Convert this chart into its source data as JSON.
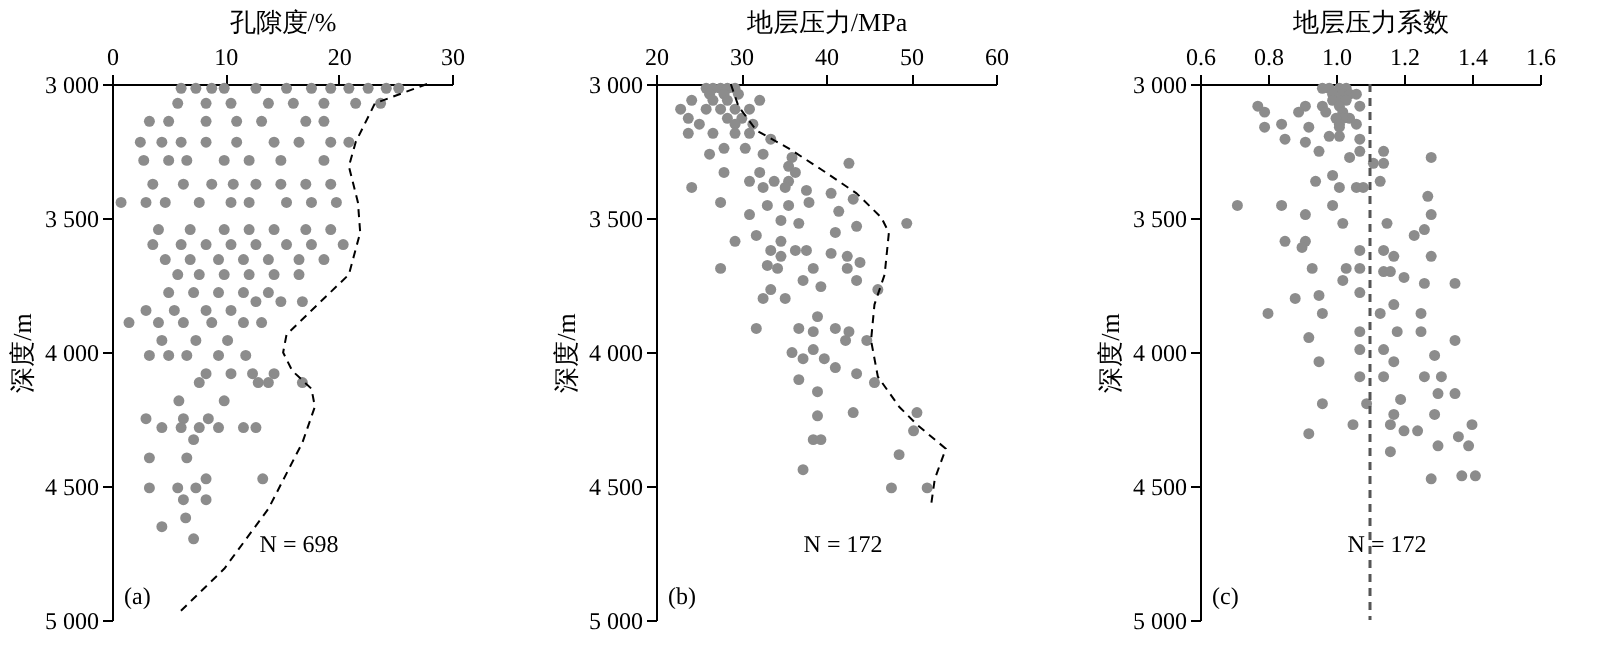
{
  "chart_data": [
    {
      "type": "scatter",
      "xlabel": "孔隙度/%",
      "ylabel": "深度/m",
      "xlim": [
        0,
        30
      ],
      "xticks": [
        0,
        10,
        20,
        30
      ],
      "ylim": [
        5000,
        3000
      ],
      "yticks": [
        {
          "value": 3000,
          "label": "3 000"
        },
        {
          "value": 3500,
          "label": "3 500"
        },
        {
          "value": 4000,
          "label": "4 000"
        },
        {
          "value": 4500,
          "label": "4 500"
        },
        {
          "value": 5000,
          "label": "5 000"
        }
      ],
      "grid": false,
      "annotations": [
        "N = 698",
        "(a)"
      ],
      "series": [
        {
          "marker": "circle",
          "color": "#8c8c8c",
          "x": [
            6.1,
            7.4,
            8.8,
            9.9,
            12.7,
            15.4,
            17.6,
            19.3,
            20.9,
            22.6,
            24.2,
            25.3,
            5.8,
            8.3,
            10.5,
            13.8,
            16.0,
            18.7,
            21.5,
            23.7,
            3.3,
            5.0,
            8.3,
            11.0,
            13.2,
            17.1,
            18.7,
            2.5,
            4.4,
            6.1,
            8.3,
            11.0,
            14.3,
            16.5,
            19.3,
            20.9,
            2.8,
            5.0,
            6.6,
            9.9,
            12.1,
            14.9,
            18.7,
            3.6,
            6.3,
            8.8,
            10.7,
            12.7,
            14.9,
            17.1,
            19.3,
            0.8,
            3.0,
            4.7,
            7.7,
            10.5,
            12.1,
            15.4,
            17.6,
            19.8,
            4.1,
            6.9,
            9.9,
            12.1,
            14.3,
            17.1,
            19.3,
            3.6,
            6.1,
            8.3,
            10.5,
            12.7,
            15.4,
            17.6,
            20.4,
            4.7,
            6.9,
            9.4,
            11.6,
            13.8,
            16.5,
            18.7,
            5.8,
            7.7,
            9.9,
            12.1,
            14.3,
            16.5,
            5.0,
            7.2,
            9.4,
            11.6,
            13.8,
            12.7,
            14.9,
            16.8,
            3.0,
            5.5,
            8.3,
            10.5,
            1.5,
            4.1,
            6.3,
            8.8,
            11.6,
            13.2,
            4.4,
            7.4,
            10.2,
            3.3,
            5.0,
            6.6,
            9.4,
            11.8,
            8.3,
            10.5,
            12.4,
            14.3,
            7.7,
            12.9,
            13.8,
            16.8,
            5.9,
            9.9,
            3.0,
            6.3,
            8.5,
            4.4,
            6.1,
            7.7,
            9.4,
            11.6,
            12.7,
            7.2,
            3.3,
            6.6,
            8.3,
            13.3,
            3.3,
            5.8,
            7.4,
            6.3,
            8.3,
            6.5,
            4.4,
            7.2
          ],
          "values": [
            3016,
            3016,
            3016,
            3016,
            3016,
            3016,
            3016,
            3016,
            3016,
            3016,
            3016,
            3016,
            3072,
            3072,
            3072,
            3072,
            3072,
            3072,
            3072,
            3072,
            3139,
            3139,
            3139,
            3139,
            3139,
            3139,
            3139,
            3217,
            3217,
            3217,
            3217,
            3217,
            3217,
            3217,
            3217,
            3217,
            3285,
            3285,
            3285,
            3285,
            3285,
            3285,
            3285,
            3374,
            3374,
            3374,
            3374,
            3374,
            3374,
            3374,
            3374,
            3442,
            3442,
            3442,
            3442,
            3442,
            3442,
            3442,
            3442,
            3442,
            3543,
            3543,
            3543,
            3543,
            3543,
            3543,
            3543,
            3599,
            3599,
            3599,
            3599,
            3599,
            3599,
            3599,
            3599,
            3655,
            3655,
            3655,
            3655,
            3655,
            3655,
            3655,
            3711,
            3711,
            3711,
            3711,
            3711,
            3711,
            3778,
            3778,
            3778,
            3778,
            3778,
            3812,
            3812,
            3812,
            3845,
            3845,
            3845,
            3845,
            3890,
            3890,
            3890,
            3890,
            3890,
            3890,
            3957,
            3957,
            3957,
            4013,
            4013,
            4013,
            4013,
            4013,
            4081,
            4081,
            4081,
            4081,
            4114,
            4114,
            4114,
            4114,
            4182,
            4182,
            4249,
            4249,
            4249,
            4282,
            4282,
            4282,
            4282,
            4282,
            4282,
            4327,
            4395,
            4395,
            4473,
            4473,
            4507,
            4507,
            4507,
            4551,
            4551,
            4619,
            4652,
            4697
          ]
        },
        {
          "type": "line",
          "color": "#000000",
          "line_style": "dashed",
          "x": [
            27.8,
            23.2,
            21.5,
            20.9,
            21.7,
            21.9,
            20.9,
            17.6,
            15.4,
            15.1,
            15.9,
            17.6,
            17.9,
            16.8,
            13.8,
            9.9,
            5.8
          ],
          "values": [
            3000,
            3072,
            3217,
            3307,
            3442,
            3554,
            3711,
            3845,
            3935,
            4002,
            4070,
            4137,
            4204,
            4338,
            4585,
            4809,
            4977
          ]
        }
      ]
    },
    {
      "type": "scatter",
      "xlabel": "地层压力/MPa",
      "ylabel": "深度/m",
      "xlim": [
        20,
        60
      ],
      "xticks": [
        20,
        30,
        40,
        50,
        60
      ],
      "ylim": [
        5000,
        3000
      ],
      "yticks": [
        {
          "value": 3000,
          "label": "3 000"
        },
        {
          "value": 3500,
          "label": "3 500"
        },
        {
          "value": 4000,
          "label": "4 000"
        },
        {
          "value": 4500,
          "label": "4 500"
        },
        {
          "value": 5000,
          "label": "5 000"
        }
      ],
      "grid": false,
      "annotations": [
        "N = 172",
        "(b)"
      ],
      "series": [
        {
          "marker": "circle",
          "color": "#8c8c8c",
          "x": [
            25.9,
            26.7,
            27.6,
            28.4,
            29.3,
            26.3,
            28.0,
            29.7,
            24.2,
            26.7,
            28.4,
            32.2,
            22.9,
            25.9,
            27.6,
            29.3,
            31.0,
            23.8,
            28.4,
            30.1,
            25.1,
            29.3,
            31.4,
            23.8,
            26.7,
            29.3,
            31.0,
            33.5,
            28.0,
            30.5,
            26.3,
            32.6,
            36.0,
            42.7,
            35.6,
            28.0,
            32.2,
            36.4,
            31.0,
            33.9,
            35.6,
            24.2,
            32.6,
            35.2,
            37.7,
            40.6,
            43.2,
            27.6,
            38.0,
            33.1,
            35.6,
            41.5,
            31.0,
            34.7,
            36.8,
            49.5,
            43.6,
            41.1,
            31.8,
            29.3,
            34.7,
            36.4,
            37.7,
            33.5,
            40.6,
            34.7,
            42.5,
            44.0,
            33.1,
            27.6,
            34.3,
            38.5,
            42.5,
            37.3,
            43.6,
            39.4,
            33.5,
            46.1,
            32.6,
            35.2,
            39.0,
            31.8,
            36.8,
            41.1,
            38.5,
            42.7,
            42.3,
            44.8,
            38.5,
            36.0,
            37.3,
            39.8,
            41.1,
            43.6,
            36.8,
            45.7,
            39.0,
            43.2,
            50.7,
            39.0,
            50.3,
            38.5,
            39.4,
            48.6,
            37.3,
            47.7,
            51.9
          ],
          "values": [
            3016,
            3016,
            3016,
            3016,
            3016,
            3038,
            3038,
            3038,
            3061,
            3061,
            3061,
            3061,
            3094,
            3094,
            3094,
            3094,
            3094,
            3128,
            3128,
            3128,
            3150,
            3150,
            3150,
            3184,
            3184,
            3184,
            3184,
            3206,
            3240,
            3240,
            3262,
            3262,
            3274,
            3296,
            3307,
            3330,
            3330,
            3330,
            3363,
            3363,
            3363,
            3386,
            3386,
            3386,
            3397,
            3408,
            3430,
            3442,
            3442,
            3453,
            3453,
            3475,
            3487,
            3509,
            3520,
            3520,
            3531,
            3554,
            3565,
            3587,
            3587,
            3621,
            3621,
            3621,
            3632,
            3643,
            3643,
            3666,
            3677,
            3688,
            3688,
            3688,
            3688,
            3733,
            3733,
            3756,
            3767,
            3767,
            3800,
            3800,
            3868,
            3912,
            3912,
            3912,
            3924,
            3924,
            3957,
            3957,
            3991,
            4002,
            4025,
            4025,
            4058,
            4081,
            4103,
            4114,
            4148,
            4226,
            4226,
            4238,
            4294,
            4327,
            4327,
            4383,
            4439,
            4507,
            4507
          ]
        },
        {
          "type": "line",
          "color": "#000000",
          "line_style": "dashed",
          "x": [
            28.8,
            29.7,
            31.8,
            35.6,
            39.4,
            43.6,
            46.5,
            47.4,
            46.9,
            45.7,
            45.3,
            46.1,
            48.6,
            50.7,
            54.1,
            52.8,
            52.4
          ],
          "values": [
            3000,
            3083,
            3173,
            3240,
            3318,
            3408,
            3498,
            3554,
            3711,
            3823,
            3957,
            4092,
            4204,
            4271,
            4361,
            4473,
            4563
          ]
        }
      ]
    },
    {
      "type": "scatter",
      "xlabel": "地层压力系数",
      "ylabel": "深度/m",
      "xlim": [
        0.6,
        1.6
      ],
      "xticks": [
        0.6,
        0.8,
        {
          "value": 1,
          "label": "1.0"
        },
        1.2,
        1.4,
        1.6
      ],
      "ylim": [
        5000,
        3000
      ],
      "yticks": [
        {
          "value": 3000,
          "label": "3 000"
        },
        {
          "value": 3500,
          "label": "3 500"
        },
        {
          "value": 4000,
          "label": "4 000"
        },
        {
          "value": 4500,
          "label": "4 500"
        },
        {
          "value": 5000,
          "label": "5 000"
        }
      ],
      "grid": false,
      "annotations": [
        "N = 172",
        "(c)"
      ],
      "ref_lines": [
        {
          "axis": "x",
          "value": 1.1,
          "color": "#555555",
          "line_style": "dashed"
        }
      ],
      "series": [
        {
          "marker": "circle",
          "color": "#8c8c8c",
          "x": [
            0.98,
            1.01,
            1.03,
            0.96,
            0.99,
            1.02,
            1.04,
            1.06,
            1.01,
            1.03,
            0.99,
            0.77,
            0.91,
            0.96,
            1.01,
            1.07,
            0.79,
            0.89,
            0.97,
            1.02,
            1.04,
            1.02,
            1.0,
            0.84,
            1.01,
            1.06,
            0.79,
            0.92,
            1.01,
            0.98,
            1.01,
            0.85,
            1.07,
            0.91,
            0.95,
            1.07,
            1.14,
            1.04,
            1.28,
            1.11,
            1.14,
            0.99,
            0.94,
            1.13,
            1.01,
            1.06,
            1.08,
            1.27,
            0.71,
            0.84,
            0.99,
            0.91,
            1.28,
            1.02,
            1.15,
            1.26,
            1.23,
            0.85,
            0.91,
            0.9,
            1.07,
            1.14,
            1.17,
            1.28,
            0.93,
            1.03,
            1.07,
            1.14,
            1.16,
            1.2,
            1.02,
            1.26,
            1.35,
            1.07,
            0.95,
            0.88,
            1.17,
            0.8,
            0.96,
            1.13,
            1.25,
            1.07,
            1.18,
            1.25,
            0.92,
            1.35,
            1.07,
            1.14,
            1.29,
            0.95,
            1.17,
            1.07,
            1.14,
            1.26,
            1.31,
            1.3,
            1.35,
            1.19,
            0.96,
            1.09,
            1.17,
            1.29,
            1.05,
            1.16,
            1.4,
            1.2,
            1.24,
            0.92,
            1.36,
            1.3,
            1.39,
            1.16,
            1.41,
            1.37,
            1.28
          ],
          "values": [
            3016,
            3016,
            3016,
            3016,
            3038,
            3038,
            3038,
            3038,
            3061,
            3061,
            3061,
            3083,
            3083,
            3083,
            3083,
            3083,
            3105,
            3105,
            3105,
            3105,
            3128,
            3128,
            3128,
            3150,
            3150,
            3150,
            3161,
            3161,
            3161,
            3195,
            3195,
            3206,
            3206,
            3217,
            3251,
            3251,
            3251,
            3274,
            3274,
            3296,
            3296,
            3341,
            3363,
            3363,
            3386,
            3386,
            3386,
            3419,
            3453,
            3453,
            3453,
            3487,
            3487,
            3520,
            3520,
            3543,
            3565,
            3587,
            3587,
            3610,
            3621,
            3621,
            3643,
            3643,
            3688,
            3688,
            3688,
            3700,
            3700,
            3722,
            3733,
            3744,
            3744,
            3778,
            3789,
            3800,
            3823,
            3856,
            3856,
            3856,
            3856,
            3924,
            3924,
            3924,
            3946,
            3957,
            3991,
            3991,
            4013,
            4036,
            4036,
            4092,
            4092,
            4092,
            4092,
            4155,
            4155,
            4177,
            4193,
            4193,
            4233,
            4233,
            4271,
            4271,
            4271,
            4294,
            4294,
            4305,
            4316,
            4350,
            4350,
            4372,
            4462,
            4462,
            4473
          ]
        }
      ]
    }
  ]
}
